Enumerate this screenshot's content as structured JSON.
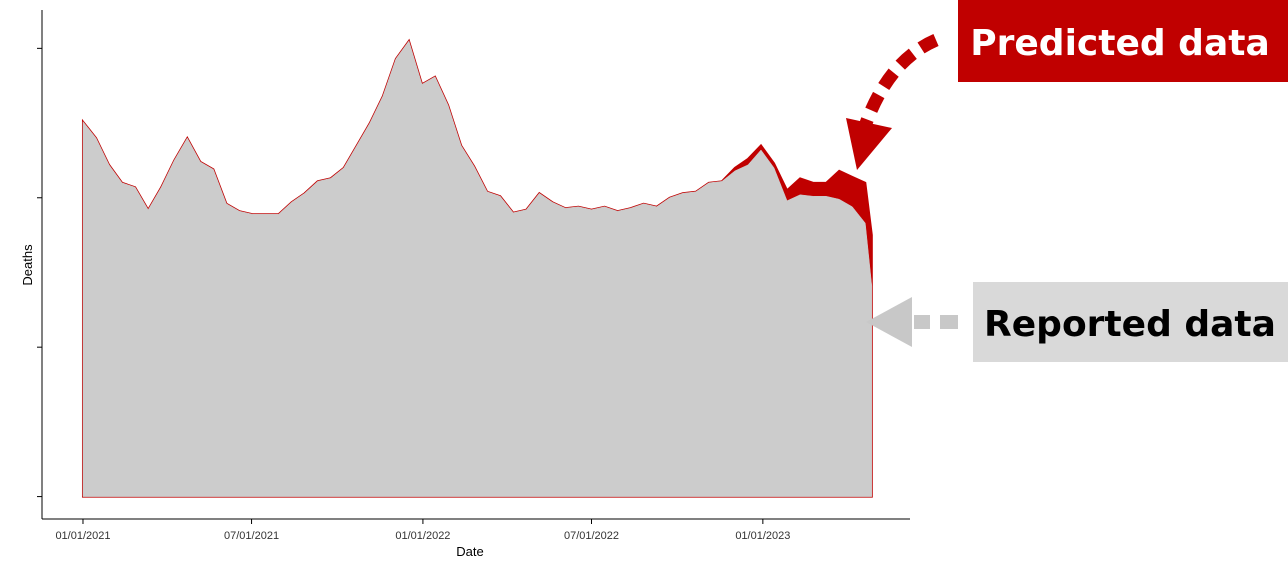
{
  "chart_data": {
    "type": "area",
    "x_label": "Date",
    "y_label": "Deaths",
    "x": [
      "01/01/2021",
      "01/15/2021",
      "01/29/2021",
      "02/12/2021",
      "02/26/2021",
      "03/12/2021",
      "03/26/2021",
      "04/09/2021",
      "04/23/2021",
      "05/07/2021",
      "05/21/2021",
      "06/04/2021",
      "06/18/2021",
      "07/02/2021",
      "07/16/2021",
      "07/30/2021",
      "08/13/2021",
      "08/27/2021",
      "09/10/2021",
      "09/24/2021",
      "10/08/2021",
      "10/22/2021",
      "11/05/2021",
      "11/19/2021",
      "12/03/2021",
      "12/17/2021",
      "12/31/2021",
      "01/14/2022",
      "01/28/2022",
      "02/11/2022",
      "02/25/2022",
      "03/11/2022",
      "03/25/2022",
      "04/08/2022",
      "04/22/2022",
      "05/06/2022",
      "05/20/2022",
      "06/03/2022",
      "06/17/2022",
      "07/01/2022",
      "07/15/2022",
      "07/29/2022",
      "08/12/2022",
      "08/26/2022",
      "09/09/2022",
      "09/23/2022",
      "10/07/2022",
      "10/21/2022",
      "11/04/2022",
      "11/18/2022",
      "12/02/2022",
      "12/16/2022",
      "12/30/2022",
      "01/13/2023",
      "01/27/2023",
      "02/10/2023",
      "02/24/2023",
      "03/10/2023",
      "03/24/2023",
      "04/07/2023",
      "04/21/2023",
      "04/28/2023"
    ],
    "series": [
      {
        "name": "Predicted data",
        "color": "#c00000",
        "values": [
          251,
          240,
          222,
          210,
          207,
          192,
          207,
          225,
          240,
          224,
          219,
          196,
          191,
          189,
          189,
          189,
          197,
          203,
          211,
          213,
          220,
          235,
          250,
          268,
          293,
          305,
          276,
          281,
          262,
          235,
          221,
          204,
          201,
          190,
          192,
          203,
          197,
          193,
          194,
          192,
          194,
          191,
          193,
          196,
          194,
          200,
          203,
          204,
          210,
          211,
          220,
          226,
          235,
          223,
          205,
          213,
          210,
          210,
          218,
          214,
          210,
          175
        ]
      },
      {
        "name": "Reported data",
        "color": "#cccccc",
        "values": [
          251,
          240,
          222,
          210,
          207,
          192,
          207,
          225,
          240,
          224,
          219,
          196,
          191,
          189,
          189,
          189,
          197,
          203,
          211,
          213,
          220,
          235,
          250,
          268,
          293,
          305,
          276,
          281,
          262,
          235,
          221,
          204,
          201,
          190,
          192,
          203,
          197,
          193,
          194,
          192,
          194,
          191,
          193,
          196,
          194,
          200,
          203,
          204,
          210,
          211,
          218,
          222,
          232,
          220,
          198,
          202,
          201,
          201,
          199,
          194,
          183,
          141
        ]
      }
    ],
    "xlim": [
      "11/18/2020",
      "06/08/2023"
    ],
    "xticks": [
      "01/01/2021",
      "07/01/2021",
      "01/01/2022",
      "07/01/2022",
      "01/01/2023"
    ],
    "ylim": [
      -15,
      325
    ],
    "yticks": [
      0,
      100,
      200,
      300
    ]
  }
}
